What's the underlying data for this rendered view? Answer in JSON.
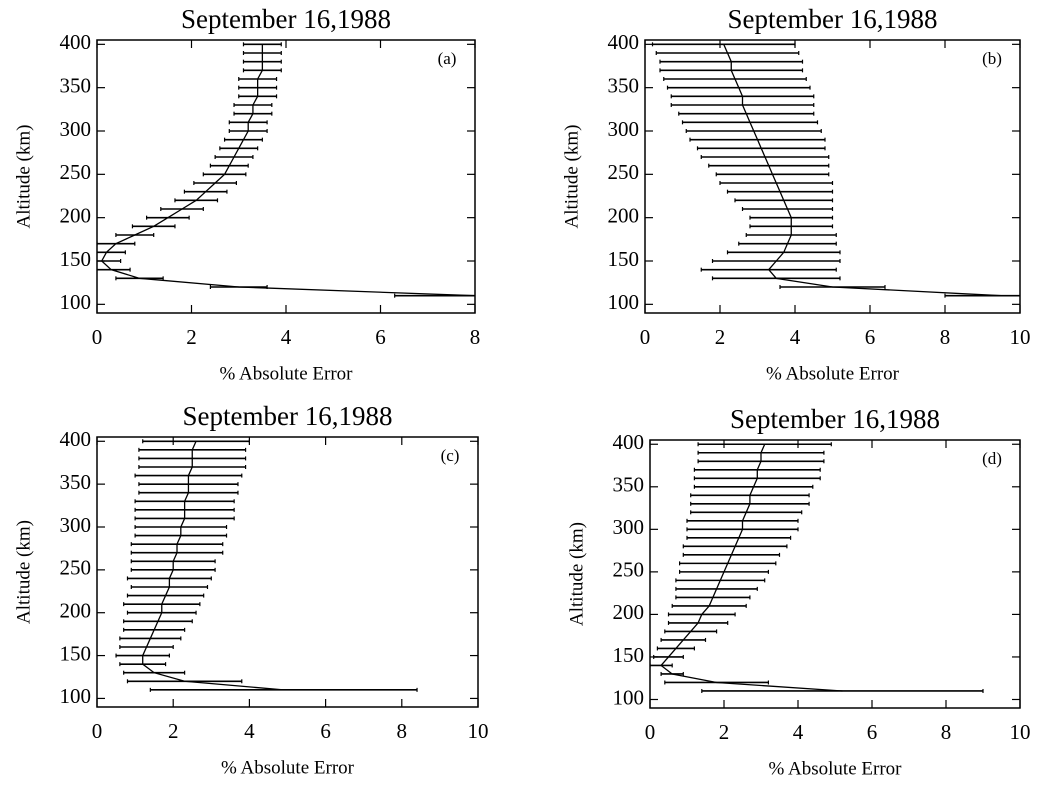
{
  "chart_data": [
    {
      "type": "line",
      "title": "September 16,1988",
      "panel_label": "(a)",
      "xlabel": "% Absolute Error",
      "ylabel": "Altitude (km)",
      "altitudes": [
        110,
        120,
        130,
        140,
        150,
        160,
        170,
        180,
        190,
        200,
        210,
        220,
        230,
        240,
        250,
        260,
        270,
        280,
        290,
        300,
        310,
        320,
        330,
        340,
        350,
        360,
        370,
        380,
        390,
        400
      ],
      "values": [
        8.0,
        3.0,
        0.9,
        0.3,
        0.1,
        0.2,
        0.4,
        0.8,
        1.2,
        1.5,
        1.8,
        2.1,
        2.3,
        2.5,
        2.7,
        2.8,
        2.9,
        3.0,
        3.1,
        3.2,
        3.2,
        3.3,
        3.3,
        3.4,
        3.4,
        3.4,
        3.5,
        3.5,
        3.5,
        3.5
      ],
      "errors": [
        1.7,
        0.6,
        0.5,
        0.4,
        0.4,
        0.4,
        0.4,
        0.4,
        0.45,
        0.45,
        0.45,
        0.45,
        0.45,
        0.45,
        0.45,
        0.4,
        0.4,
        0.4,
        0.4,
        0.4,
        0.4,
        0.4,
        0.4,
        0.4,
        0.4,
        0.4,
        0.4,
        0.4,
        0.4,
        0.4
      ],
      "xlim": [
        0,
        8
      ],
      "xticks": [
        0,
        2,
        4,
        6,
        8
      ],
      "ylim": [
        90,
        405
      ],
      "yticks": [
        100,
        150,
        200,
        250,
        300,
        350,
        400
      ],
      "color": "#000000"
    },
    {
      "type": "line",
      "title": "September 16,1988",
      "panel_label": "(b)",
      "xlabel": "% Absolute Error",
      "ylabel": "Altitude (km)",
      "altitudes": [
        110,
        120,
        130,
        140,
        150,
        160,
        170,
        180,
        190,
        200,
        210,
        220,
        230,
        240,
        250,
        260,
        270,
        280,
        290,
        300,
        310,
        320,
        330,
        340,
        350,
        360,
        370,
        380,
        390,
        400
      ],
      "values": [
        9.5,
        5.0,
        3.5,
        3.3,
        3.5,
        3.7,
        3.8,
        3.9,
        3.9,
        3.9,
        3.8,
        3.7,
        3.6,
        3.5,
        3.4,
        3.3,
        3.2,
        3.1,
        3.0,
        2.9,
        2.8,
        2.7,
        2.6,
        2.6,
        2.5,
        2.4,
        2.3,
        2.3,
        2.2,
        2.1
      ],
      "errors": [
        1.5,
        1.4,
        1.7,
        1.8,
        1.7,
        1.5,
        1.3,
        1.2,
        1.1,
        1.1,
        1.2,
        1.3,
        1.4,
        1.5,
        1.5,
        1.6,
        1.7,
        1.7,
        1.8,
        1.8,
        1.8,
        1.8,
        1.9,
        1.9,
        1.9,
        1.9,
        1.9,
        1.9,
        1.9,
        1.9
      ],
      "xlim": [
        0,
        10
      ],
      "xticks": [
        0,
        2,
        4,
        6,
        8,
        10
      ],
      "ylim": [
        90,
        405
      ],
      "yticks": [
        100,
        150,
        200,
        250,
        300,
        350,
        400
      ],
      "color": "#000000"
    },
    {
      "type": "line",
      "title": "September 16,1988",
      "panel_label": "(c)",
      "xlabel": "% Absolute Error",
      "ylabel": "Altitude (km)",
      "altitudes": [
        110,
        120,
        130,
        140,
        150,
        160,
        170,
        180,
        190,
        200,
        210,
        220,
        230,
        240,
        250,
        260,
        270,
        280,
        290,
        300,
        310,
        320,
        330,
        340,
        350,
        360,
        370,
        380,
        390,
        400
      ],
      "values": [
        4.9,
        2.3,
        1.5,
        1.2,
        1.2,
        1.3,
        1.4,
        1.5,
        1.6,
        1.7,
        1.7,
        1.8,
        1.9,
        1.9,
        2.0,
        2.0,
        2.1,
        2.1,
        2.2,
        2.2,
        2.3,
        2.3,
        2.3,
        2.4,
        2.4,
        2.4,
        2.5,
        2.5,
        2.5,
        2.6
      ],
      "errors": [
        3.5,
        1.5,
        0.8,
        0.6,
        0.7,
        0.7,
        0.8,
        0.8,
        0.9,
        0.9,
        1.0,
        1.0,
        1.0,
        1.1,
        1.1,
        1.1,
        1.2,
        1.2,
        1.2,
        1.2,
        1.3,
        1.3,
        1.3,
        1.3,
        1.3,
        1.4,
        1.4,
        1.4,
        1.4,
        1.4
      ],
      "xlim": [
        0,
        10
      ],
      "xticks": [
        0,
        2,
        4,
        6,
        8,
        10
      ],
      "ylim": [
        90,
        405
      ],
      "yticks": [
        100,
        150,
        200,
        250,
        300,
        350,
        400
      ],
      "color": "#000000"
    },
    {
      "type": "line",
      "title": "September 16,1988",
      "panel_label": "(d)",
      "xlabel": "% Absolute Error",
      "ylabel": "Altitude (km)",
      "altitudes": [
        110,
        120,
        130,
        140,
        150,
        160,
        170,
        180,
        190,
        200,
        210,
        220,
        230,
        240,
        250,
        260,
        270,
        280,
        290,
        300,
        310,
        320,
        330,
        340,
        350,
        360,
        370,
        380,
        390,
        400
      ],
      "values": [
        5.2,
        1.8,
        0.6,
        0.3,
        0.5,
        0.7,
        0.9,
        1.1,
        1.3,
        1.4,
        1.6,
        1.7,
        1.8,
        1.9,
        2.0,
        2.1,
        2.2,
        2.3,
        2.4,
        2.5,
        2.5,
        2.6,
        2.7,
        2.7,
        2.8,
        2.9,
        2.9,
        3.0,
        3.0,
        3.1
      ],
      "errors": [
        3.8,
        1.4,
        0.3,
        0.3,
        0.4,
        0.5,
        0.6,
        0.7,
        0.8,
        0.9,
        1.0,
        1.0,
        1.1,
        1.2,
        1.2,
        1.3,
        1.3,
        1.4,
        1.4,
        1.5,
        1.5,
        1.5,
        1.6,
        1.6,
        1.6,
        1.7,
        1.7,
        1.7,
        1.7,
        1.8
      ],
      "xlim": [
        0,
        10
      ],
      "xticks": [
        0,
        2,
        4,
        6,
        8,
        10
      ],
      "ylim": [
        90,
        405
      ],
      "yticks": [
        100,
        150,
        200,
        250,
        300,
        350,
        400
      ],
      "color": "#000000"
    }
  ]
}
